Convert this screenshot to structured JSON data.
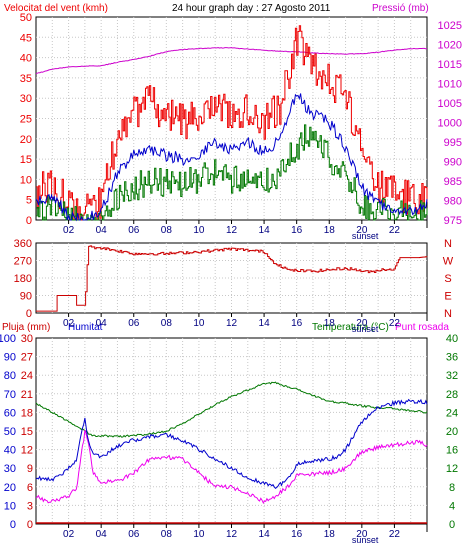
{
  "title": "24 hour graph day : 27 Agosto 2011",
  "colors": {
    "wind": "#ee0000",
    "wind_avg": "#0000cc",
    "wind_low": "#007700",
    "pressure": "#cc00cc",
    "direction": "#cc0000",
    "humidity": "#0000cc",
    "temperature": "#007700",
    "dewpoint": "#ee00ee",
    "rain": "#cc0000",
    "grid": "#c8c8c8"
  },
  "x_ticks": [
    "02",
    "04",
    "06",
    "08",
    "10",
    "12",
    "14",
    "16",
    "18",
    "20",
    "22"
  ],
  "sunset_label": "sunset",
  "chart_data": [
    {
      "type": "line",
      "title": "24 hour graph day : 27 Agosto 2011",
      "left_axis_label": "Velocitat del vent (kmh)",
      "right_axis_label": "Pressió (mb)",
      "left_ticks": [
        "50",
        "45",
        "40",
        "35",
        "30",
        "25",
        "20",
        "15",
        "10",
        "5",
        "0"
      ],
      "right_ticks": [
        "1025",
        "1020",
        "1015",
        "1010",
        "1005",
        "1000",
        "995",
        "990",
        "985",
        "980",
        "975"
      ],
      "ylim_left": [
        0,
        50
      ],
      "ylim_right": [
        975,
        1027
      ],
      "x": [
        0,
        1,
        2,
        3,
        4,
        5,
        6,
        7,
        8,
        9,
        10,
        11,
        12,
        13,
        14,
        15,
        16,
        17,
        18,
        19,
        20,
        21,
        22,
        23,
        24
      ],
      "series": [
        {
          "key": "gust",
          "values": [
            7,
            10,
            3,
            2,
            4,
            22,
            27,
            29,
            26,
            24,
            25,
            28,
            26,
            27,
            24,
            28,
            45,
            37,
            34,
            30,
            16,
            8,
            7,
            5,
            7
          ]
        },
        {
          "key": "avg",
          "values": [
            4,
            6,
            1,
            0,
            2,
            12,
            16,
            17,
            16,
            15,
            16,
            19,
            17,
            19,
            17,
            20,
            31,
            26,
            24,
            18,
            8,
            4,
            3,
            2,
            4
          ]
        },
        {
          "key": "low",
          "values": [
            2,
            3,
            0,
            0,
            1,
            6,
            8,
            10,
            9,
            9,
            10,
            12,
            10,
            11,
            9,
            12,
            18,
            22,
            15,
            11,
            4,
            2,
            2,
            1,
            2
          ]
        },
        {
          "key": "pressure",
          "values": [
            1012.5,
            1013.6,
            1014.2,
            1014.4,
            1014.5,
            1015.4,
            1016.1,
            1017.0,
            1018.1,
            1018.7,
            1018.9,
            1019.1,
            1019.1,
            1018.8,
            1018.5,
            1018.2,
            1018.1,
            1017.8,
            1017.6,
            1017.5,
            1017.6,
            1018.0,
            1018.5,
            1018.9,
            1018.9
          ]
        }
      ]
    },
    {
      "type": "line",
      "left_ticks": [
        "360",
        "270",
        "180",
        "90",
        "0"
      ],
      "right_ticks": [
        "N",
        "W",
        "S",
        "E",
        "N"
      ],
      "ylim": [
        0,
        360
      ],
      "x": [
        0,
        1.2,
        1.2,
        2.4,
        2.4,
        3.0,
        3.2,
        4,
        6,
        8,
        10,
        12,
        14,
        14.5,
        15.5,
        17,
        19,
        20.5,
        21.3,
        22.0,
        22.3,
        23.5,
        24
      ],
      "values": [
        10,
        10,
        90,
        90,
        40,
        40,
        340,
        335,
        305,
        305,
        315,
        330,
        315,
        265,
        220,
        215,
        230,
        210,
        225,
        225,
        285,
        285,
        290
      ]
    },
    {
      "type": "line",
      "left_axis_label": "Pluja (mm)",
      "humidity_label": "Humitat",
      "right_axis_label": "Temperatura (°C)",
      "dew_label": "Punt rosada",
      "rain_ticks": [
        "30",
        "27",
        "24",
        "21",
        "18",
        "15",
        "12",
        "9",
        "6",
        "3",
        "0"
      ],
      "humidity_ticks": [
        "100",
        "90",
        "80",
        "70",
        "60",
        "50",
        "40",
        "30",
        "20",
        "10",
        "0"
      ],
      "temp_ticks": [
        "40",
        "36",
        "32",
        "28",
        "24",
        "20",
        "16",
        "12",
        "8",
        "4",
        "0"
      ],
      "ylim_humidity": [
        0,
        100
      ],
      "ylim_temp": [
        0,
        40
      ],
      "x": [
        0,
        0.5,
        1,
        1.5,
        2,
        2.5,
        3,
        3.2,
        3.5,
        4,
        5,
        6,
        7,
        8,
        9,
        10,
        11,
        12,
        13,
        14,
        14.8,
        15.3,
        15.8,
        16,
        17,
        18,
        18.5,
        19,
        20,
        21,
        22,
        23,
        23.5,
        24
      ],
      "series": [
        {
          "key": "humidity",
          "values": [
            25,
            24,
            24,
            26,
            30,
            35,
            58,
            45,
            38,
            36,
            42,
            45,
            47,
            48,
            45,
            40,
            35,
            30,
            25,
            22,
            20,
            23,
            28,
            32,
            34,
            35,
            36,
            40,
            55,
            63,
            65,
            66,
            66,
            65
          ]
        },
        {
          "key": "temperature",
          "values": [
            26,
            25,
            24,
            23,
            22,
            21,
            20,
            19.5,
            19,
            19,
            18.8,
            19,
            19.4,
            20,
            21.6,
            23.6,
            25.6,
            27.4,
            28.8,
            30.2,
            30.4,
            29.6,
            29.2,
            29,
            27.6,
            26.4,
            26.2,
            26,
            25.4,
            25,
            24.8,
            24.4,
            24.2,
            24
          ]
        },
        {
          "key": "dewpoint",
          "values": [
            6,
            5,
            5,
            5.5,
            6,
            8,
            20,
            18,
            11,
            9,
            9.2,
            11,
            14,
            14.4,
            14,
            11,
            8,
            8,
            6.4,
            4.8,
            6.2,
            7.6,
            9,
            10.4,
            10.8,
            11,
            11.4,
            12,
            15.6,
            16.4,
            17,
            17.4,
            17.6,
            17
          ]
        },
        {
          "key": "rain",
          "values": [
            0,
            0,
            0,
            0,
            0,
            0,
            0,
            0,
            0,
            0,
            0,
            0,
            0,
            0,
            0,
            0,
            0,
            0,
            0,
            0,
            0,
            0,
            0,
            0,
            0,
            0,
            0,
            0,
            0,
            0,
            0,
            0,
            0,
            0
          ]
        }
      ]
    }
  ]
}
